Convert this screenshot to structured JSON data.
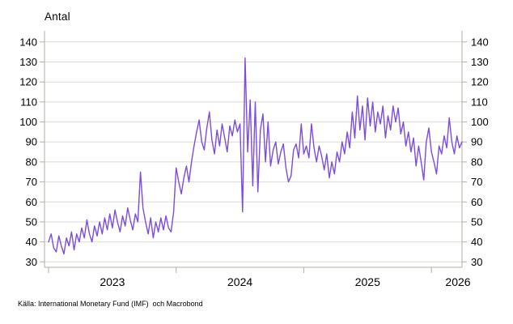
{
  "chart_data": {
    "type": "line",
    "title": "Antal",
    "source": "Källa: International Monetary Fund (IMF)  och Macrobond",
    "xlabel": "",
    "ylabel": "",
    "legend": "none",
    "grid": "horizontal-only",
    "x_start": 2023.0,
    "x_step": 0.02,
    "values": [
      40,
      44,
      37,
      35,
      43,
      38,
      34,
      42,
      38,
      45,
      36,
      44,
      40,
      47,
      42,
      51,
      44,
      40,
      48,
      43,
      50,
      44,
      52,
      46,
      54,
      47,
      56,
      50,
      45,
      53,
      48,
      57,
      51,
      46,
      54,
      50,
      75,
      57,
      50,
      44,
      52,
      42,
      50,
      45,
      52,
      46,
      53,
      47,
      45,
      55,
      77,
      70,
      64,
      72,
      78,
      70,
      80,
      88,
      95,
      101,
      90,
      86,
      97,
      105,
      91,
      84,
      96,
      88,
      99,
      92,
      85,
      98,
      93,
      101,
      95,
      99,
      55,
      132,
      85,
      111,
      68,
      110,
      65,
      96,
      104,
      80,
      100,
      78,
      86,
      90,
      79,
      85,
      89,
      77,
      70,
      73,
      86,
      89,
      82,
      99,
      84,
      88,
      82,
      99,
      87,
      80,
      88,
      83,
      76,
      84,
      72,
      80,
      74,
      85,
      80,
      90,
      84,
      95,
      87,
      105,
      92,
      113,
      96,
      108,
      91,
      112,
      98,
      110,
      95,
      105,
      99,
      108,
      92,
      103,
      96,
      108,
      100,
      107,
      94,
      100,
      88,
      95,
      85,
      92,
      78,
      88,
      80,
      71,
      90,
      97,
      85,
      80,
      74,
      88,
      84,
      93,
      87,
      102,
      90,
      84,
      93,
      87,
      90
    ],
    "x_ticks": [
      2023,
      2024,
      2025,
      2026
    ],
    "x_tick_labels": [
      "2023",
      "2024",
      "2025",
      "2026"
    ],
    "y_ticks": [
      30,
      40,
      50,
      60,
      70,
      80,
      90,
      100,
      110,
      120,
      130,
      140
    ],
    "x_domain": [
      2022.968,
      2026.24
    ],
    "y_domain": [
      27.3,
      145.6
    ],
    "colors": {
      "line": "#7c4be0",
      "grid": "#dedad2",
      "axis": "#b5afa5",
      "text": "#000000"
    }
  }
}
